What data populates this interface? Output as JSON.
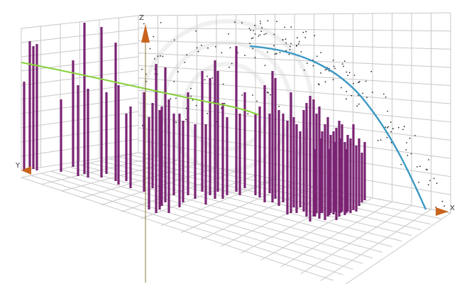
{
  "colors": {
    "background": "#ffffff",
    "grid": "#c8c8c8",
    "bars": "#7a2373",
    "green_curve": "#86d13a",
    "blue_curve": "#3c98c4",
    "points": "#2a2a2a",
    "axis_arrow": "#c8641e",
    "axis_line": "#8a7a3a",
    "watermark": "#e4e4e4"
  },
  "axes": {
    "x": "X",
    "y": "Y",
    "z": "Z"
  },
  "chart_data": {
    "type": "scatter",
    "axis_labels": {
      "x": "X",
      "y": "Y",
      "z": "Z"
    },
    "grid": true,
    "legend": "none",
    "marks": [
      {
        "kind": "vertical-bars",
        "color": "#7a2373",
        "count": 120
      },
      {
        "kind": "curve",
        "color": "#86d13a"
      },
      {
        "kind": "curve",
        "color": "#3c98c4"
      },
      {
        "kind": "scatter-points",
        "color": "#2a2a2a",
        "count": 200
      }
    ]
  }
}
